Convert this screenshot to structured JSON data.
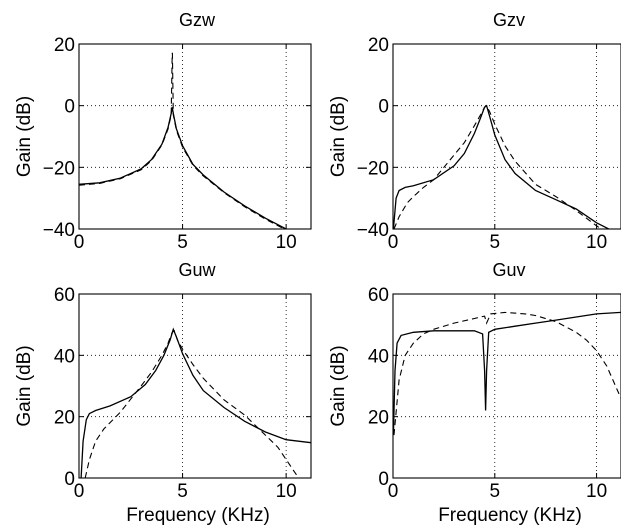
{
  "chart_data": [
    {
      "type": "line",
      "title": "Gzw",
      "xlabel": "",
      "ylabel": "Gain  (dB)",
      "xlim": [
        0,
        11.2
      ],
      "ylim": [
        -40,
        20
      ],
      "xticks": [
        0,
        5,
        10
      ],
      "yticks": [
        20,
        0,
        -20,
        -40
      ],
      "ytick_labels": [
        "20",
        "0",
        "−20",
        "−40"
      ],
      "grid": true,
      "series": [
        {
          "style": "solid",
          "x": [
            0,
            1,
            2,
            3,
            3.5,
            4,
            4.3,
            4.45,
            4.5,
            4.55,
            4.7,
            5,
            5.5,
            6,
            7,
            8,
            9,
            10,
            11.2
          ],
          "y": [
            -25.5,
            -25,
            -23.5,
            -20.5,
            -17.5,
            -12.5,
            -7,
            -2.5,
            -0.5,
            -2.5,
            -7.5,
            -13,
            -19,
            -22.5,
            -28,
            -32.5,
            -36.5,
            -40,
            -43
          ]
        },
        {
          "style": "dashed",
          "x": [
            0,
            1,
            2,
            3,
            3.5,
            4,
            4.3,
            4.45,
            4.5,
            4.51,
            4.55,
            4.7,
            5,
            5.5,
            6,
            7,
            8,
            9,
            10,
            11.2
          ],
          "y": [
            -25.8,
            -25.2,
            -23.7,
            -20.8,
            -17.8,
            -12.8,
            -7.5,
            -3,
            17,
            17,
            -3,
            -8,
            -13.5,
            -19.3,
            -22.8,
            -28.2,
            -32.8,
            -36.8,
            -40.3,
            -43.3
          ]
        }
      ]
    },
    {
      "type": "line",
      "title": "Gzv",
      "xlabel": "",
      "ylabel": "Gain  (dB)",
      "xlim": [
        0,
        11.2
      ],
      "ylim": [
        -40,
        20
      ],
      "xticks": [
        0,
        5,
        10
      ],
      "yticks": [
        20,
        0,
        -20,
        -40
      ],
      "ytick_labels": [
        "20",
        "0",
        "−20",
        "−40"
      ],
      "grid": true,
      "series": [
        {
          "style": "solid",
          "x": [
            0.02,
            0.15,
            0.3,
            0.6,
            1,
            2,
            3,
            3.5,
            4,
            4.3,
            4.5,
            4.6,
            4.75,
            5,
            5.5,
            6,
            7,
            8,
            9,
            10,
            11.2
          ],
          "y": [
            -40,
            -30,
            -27.5,
            -26.5,
            -26,
            -24,
            -19.5,
            -15.5,
            -9,
            -4,
            -0.5,
            0,
            -3.5,
            -9.5,
            -17.5,
            -22,
            -27.5,
            -30.5,
            -33.5,
            -38,
            -42
          ]
        },
        {
          "style": "dashed",
          "x": [
            0.05,
            0.3,
            0.7,
            1,
            1.5,
            2,
            3,
            3.5,
            4,
            4.3,
            4.5,
            4.6,
            4.75,
            5,
            5.5,
            6,
            7,
            8,
            9,
            10,
            11.2
          ],
          "y": [
            -40,
            -36,
            -31.5,
            -29.5,
            -26.5,
            -24,
            -16,
            -12,
            -6.5,
            -3,
            -0.5,
            0,
            -2,
            -6,
            -13,
            -18,
            -25.5,
            -29.5,
            -34,
            -39,
            -44
          ]
        }
      ]
    },
    {
      "type": "line",
      "title": "Guw",
      "xlabel": "Frequency  (KHz)",
      "ylabel": "Gain  (dB)",
      "xlim": [
        0,
        11.2
      ],
      "ylim": [
        0,
        60
      ],
      "xticks": [
        0,
        5,
        10
      ],
      "yticks": [
        60,
        40,
        20,
        0
      ],
      "ytick_labels": [
        "60",
        "40",
        "20",
        "0"
      ],
      "grid": true,
      "series": [
        {
          "style": "solid",
          "x": [
            0.1,
            0.2,
            0.35,
            0.5,
            0.8,
            1.5,
            2.5,
            3.2,
            3.7,
            4.1,
            4.4,
            4.55,
            4.7,
            5,
            5.5,
            6,
            7,
            8,
            9,
            10,
            11.2
          ],
          "y": [
            0,
            12,
            19,
            21,
            22,
            23.5,
            26.5,
            30.5,
            35,
            40,
            45,
            48.5,
            46,
            40.5,
            33.5,
            28.5,
            23,
            18.5,
            15,
            12.5,
            11.5
          ]
        },
        {
          "style": "dashed",
          "x": [
            0.3,
            0.5,
            0.8,
            1.2,
            2,
            3,
            3.5,
            4,
            4.3,
            4.5,
            4.6,
            4.75,
            5,
            5.5,
            6,
            7,
            8,
            9,
            9.6,
            10.2,
            10.6
          ],
          "y": [
            0,
            6,
            12,
            16,
            21.5,
            30,
            34.5,
            40,
            44,
            47.5,
            48,
            45,
            42,
            37,
            32.5,
            25.5,
            20.5,
            14,
            10,
            4,
            0
          ]
        }
      ]
    },
    {
      "type": "line",
      "title": "Guv",
      "xlabel": "Frequency  (KHz)",
      "ylabel": "Gain  (dB)",
      "xlim": [
        0,
        11.2
      ],
      "ylim": [
        0,
        60
      ],
      "xticks": [
        0,
        5,
        10
      ],
      "yticks": [
        60,
        40,
        20,
        0
      ],
      "ytick_labels": [
        "60",
        "40",
        "20",
        "0"
      ],
      "grid": true,
      "series": [
        {
          "style": "solid",
          "x": [
            0.02,
            0.1,
            0.2,
            0.4,
            1,
            2,
            3,
            4,
            4.4,
            4.5,
            4.55,
            4.6,
            4.7,
            5,
            6,
            7,
            8,
            9,
            10,
            11.2
          ],
          "y": [
            14,
            35,
            44,
            46.5,
            47.5,
            48,
            48,
            48,
            47,
            35,
            22,
            35,
            47.5,
            48.5,
            49.5,
            50.5,
            51.5,
            52.5,
            53.5,
            54
          ]
        },
        {
          "style": "dashed",
          "x": [
            0.05,
            0.3,
            0.6,
            1,
            1.5,
            2,
            3,
            4,
            4.5,
            4.6,
            4.8,
            5.5,
            6.5,
            7,
            8,
            9,
            9.5,
            10,
            10.5,
            11,
            11.2
          ],
          "y": [
            14,
            32,
            40,
            44,
            47,
            48.5,
            50.5,
            52,
            52.8,
            50.5,
            53.5,
            54,
            53.5,
            53,
            51,
            47.5,
            45,
            41.5,
            36.5,
            29,
            26
          ]
        }
      ]
    }
  ]
}
